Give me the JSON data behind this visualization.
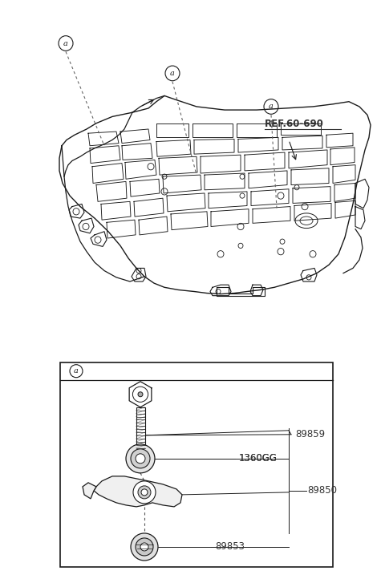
{
  "bg_color": "#ffffff",
  "line_color": "#1a1a1a",
  "ref_label": "REF.60-690",
  "callout_label": "a",
  "part_labels": [
    "89859",
    "1360GG",
    "89850",
    "89853"
  ],
  "figsize": [
    4.75,
    7.27
  ],
  "dpi": 100
}
